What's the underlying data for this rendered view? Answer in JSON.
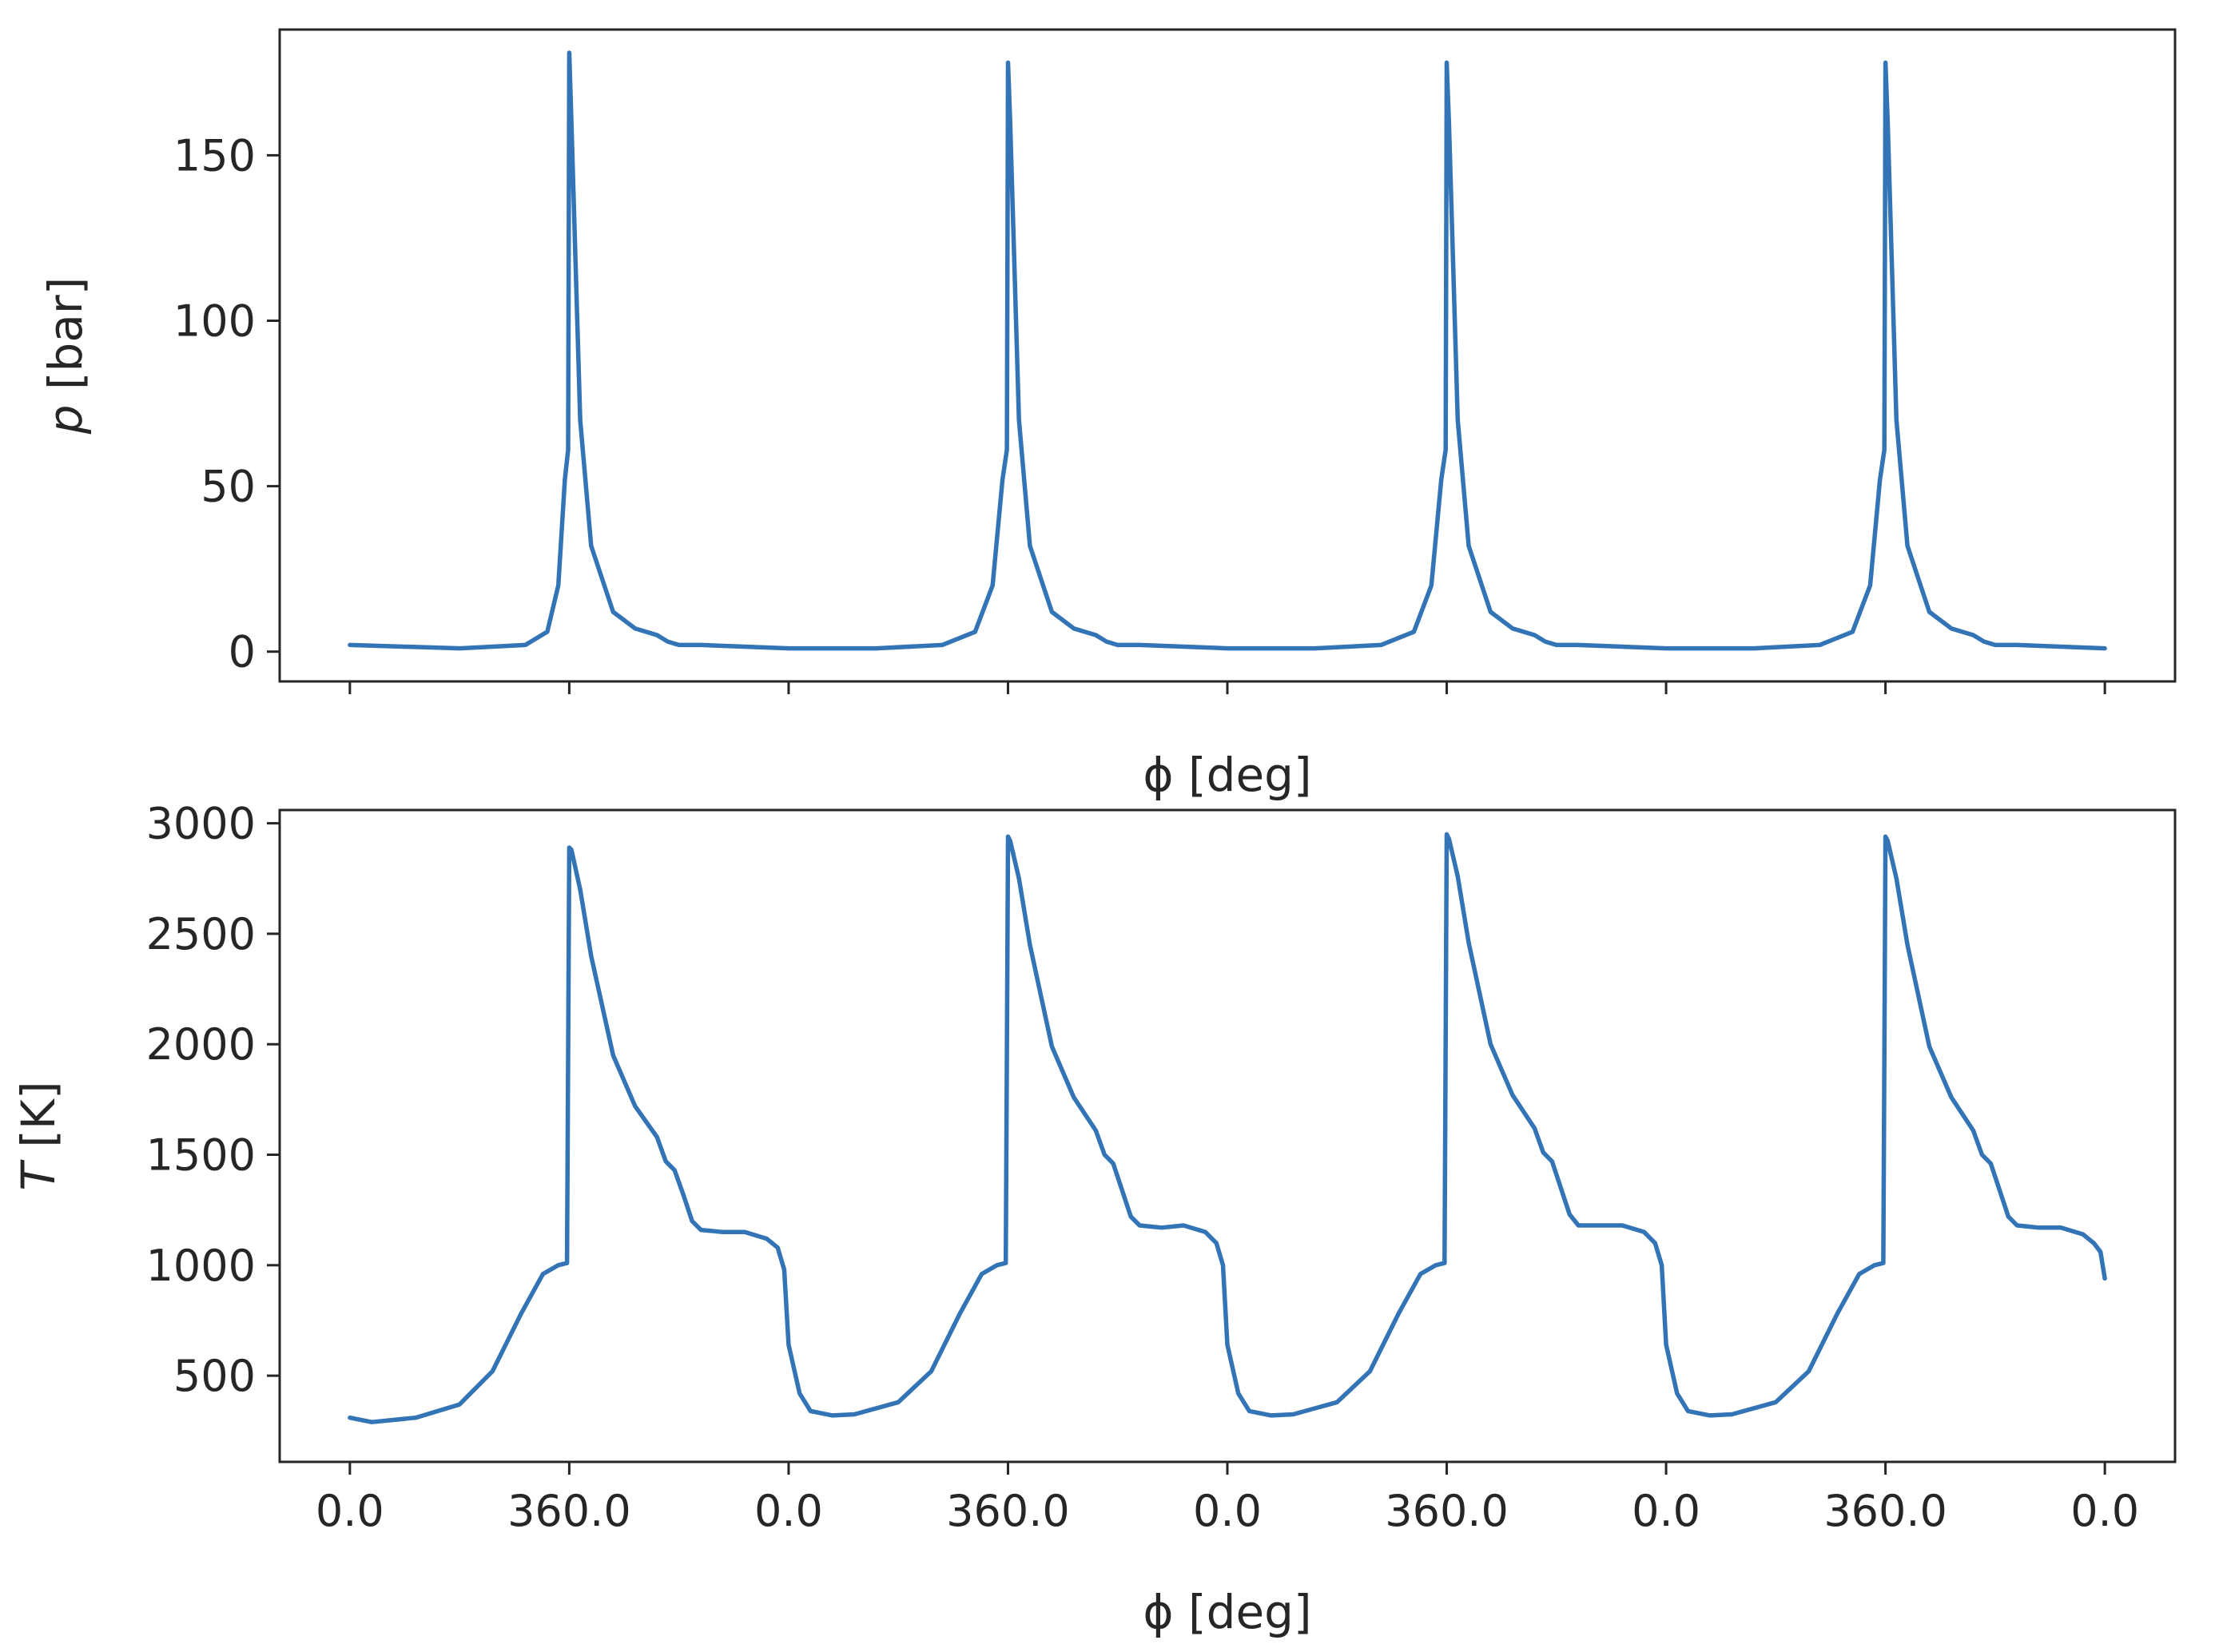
{
  "chart_data": [
    {
      "type": "line",
      "xlabel": "ϕ [deg]",
      "ylabel": "p [bar]",
      "ylabel_symbol": "p",
      "ylabel_unit": "[bar]",
      "xlim": [
        -0.32,
        8.32
      ],
      "ylim": [
        -9,
        188
      ],
      "yticks": [
        0,
        50,
        100,
        150
      ],
      "ytick_labels": [
        "0",
        "50",
        "100",
        "150"
      ],
      "xticks": [
        0,
        1,
        2,
        3,
        4,
        5,
        6,
        7,
        8
      ],
      "xtick_labels": [
        "",
        "",
        "",
        "",
        "",
        "",
        "",
        "",
        ""
      ],
      "grid": false,
      "color": "#3274b5",
      "series": [
        {
          "x": [
            0,
            0.5,
            0.8,
            0.9,
            0.95,
            0.98,
            0.995,
            1.0,
            1.01,
            1.05,
            1.1,
            1.2,
            1.3,
            1.4,
            1.45,
            1.5,
            1.6,
            2.0,
            2.4,
            2.7,
            2.85,
            2.93,
            2.975,
            2.995,
            3.0,
            3.01,
            3.05,
            3.1,
            3.2,
            3.3,
            3.4,
            3.45,
            3.5,
            3.6,
            4.0,
            4.4,
            4.7,
            4.85,
            4.93,
            4.975,
            4.995,
            5.0,
            5.01,
            5.05,
            5.1,
            5.2,
            5.3,
            5.4,
            5.45,
            5.5,
            5.6,
            6.0,
            6.4,
            6.7,
            6.85,
            6.93,
            6.975,
            6.995,
            7.0,
            7.01,
            7.05,
            7.1,
            7.2,
            7.3,
            7.4,
            7.45,
            7.5,
            7.6,
            8.0
          ],
          "y": [
            2,
            1,
            2,
            6,
            20,
            52,
            61,
            181,
            160,
            70,
            32,
            12,
            7,
            5,
            3,
            2,
            2,
            1,
            1,
            2,
            6,
            20,
            52,
            61,
            178,
            160,
            70,
            32,
            12,
            7,
            5,
            3,
            2,
            2,
            1,
            1,
            2,
            6,
            20,
            52,
            61,
            178,
            160,
            70,
            32,
            12,
            7,
            5,
            3,
            2,
            2,
            1,
            1,
            2,
            6,
            20,
            52,
            61,
            178,
            160,
            70,
            32,
            12,
            7,
            5,
            3,
            2,
            2,
            1
          ]
        }
      ]
    },
    {
      "type": "line",
      "xlabel": "ϕ [deg]",
      "ylabel": "T [K]",
      "ylabel_symbol": "T",
      "ylabel_unit": "[K]",
      "xlim": [
        -0.32,
        8.32
      ],
      "ylim": [
        110,
        3060
      ],
      "yticks": [
        500,
        1000,
        1500,
        2000,
        2500,
        3000
      ],
      "ytick_labels": [
        "500",
        "1000",
        "1500",
        "2000",
        "2500",
        "3000"
      ],
      "xticks": [
        0,
        1,
        2,
        3,
        4,
        5,
        6,
        7,
        8
      ],
      "xtick_labels": [
        "0.0",
        "360.0",
        "0.0",
        "360.0",
        "0.0",
        "360.0",
        "0.0",
        "360.0",
        "0.0"
      ],
      "grid": false,
      "color": "#3274b5",
      "series": [
        {
          "x": [
            0,
            0.1,
            0.3,
            0.5,
            0.65,
            0.78,
            0.88,
            0.95,
            0.99,
            1.0,
            1.01,
            1.05,
            1.1,
            1.2,
            1.3,
            1.4,
            1.44,
            1.48,
            1.52,
            1.56,
            1.6,
            1.7,
            1.8,
            1.9,
            1.95,
            1.98,
            2.0,
            2.05,
            2.1,
            2.2,
            2.3,
            2.5,
            2.65,
            2.78,
            2.88,
            2.95,
            2.99,
            3.0,
            3.01,
            3.05,
            3.1,
            3.2,
            3.3,
            3.4,
            3.44,
            3.48,
            3.52,
            3.56,
            3.6,
            3.7,
            3.8,
            3.9,
            3.95,
            3.98,
            4.0,
            4.05,
            4.1,
            4.2,
            4.3,
            4.5,
            4.65,
            4.78,
            4.88,
            4.95,
            4.99,
            5.0,
            5.01,
            5.05,
            5.1,
            5.2,
            5.3,
            5.4,
            5.44,
            5.48,
            5.52,
            5.56,
            5.6,
            5.7,
            5.8,
            5.9,
            5.95,
            5.98,
            6.0,
            6.05,
            6.1,
            6.2,
            6.3,
            6.5,
            6.65,
            6.78,
            6.88,
            6.95,
            6.99,
            7.0,
            7.01,
            7.05,
            7.1,
            7.2,
            7.3,
            7.4,
            7.44,
            7.48,
            7.52,
            7.56,
            7.6,
            7.7,
            7.8,
            7.9,
            7.95,
            7.98,
            8.0
          ],
          "y": [
            310,
            290,
            310,
            370,
            520,
            780,
            960,
            1000,
            1010,
            2890,
            2880,
            2700,
            2400,
            1950,
            1720,
            1580,
            1470,
            1430,
            1320,
            1200,
            1160,
            1150,
            1150,
            1120,
            1080,
            980,
            640,
            420,
            340,
            320,
            325,
            380,
            520,
            780,
            960,
            1000,
            1010,
            2940,
            2920,
            2750,
            2450,
            1990,
            1760,
            1610,
            1500,
            1460,
            1340,
            1220,
            1180,
            1170,
            1180,
            1150,
            1100,
            1000,
            640,
            420,
            340,
            320,
            325,
            380,
            520,
            780,
            960,
            1000,
            1010,
            2950,
            2930,
            2760,
            2460,
            2000,
            1770,
            1620,
            1510,
            1470,
            1350,
            1230,
            1180,
            1180,
            1180,
            1150,
            1100,
            1000,
            640,
            420,
            340,
            320,
            325,
            380,
            520,
            780,
            960,
            1000,
            1010,
            2940,
            2920,
            2750,
            2450,
            1990,
            1760,
            1610,
            1500,
            1460,
            1340,
            1220,
            1180,
            1170,
            1170,
            1140,
            1100,
            1060,
            940
          ]
        }
      ]
    }
  ]
}
